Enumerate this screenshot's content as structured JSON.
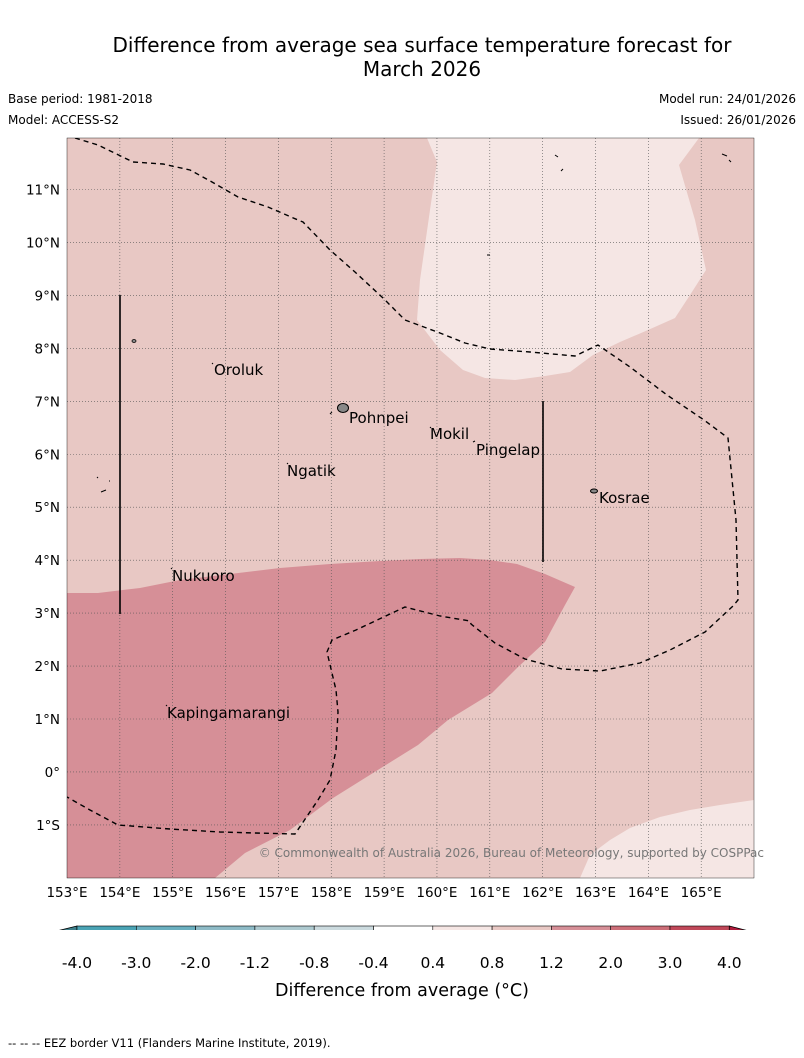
{
  "header": {
    "title_line1": "Difference from average sea surface temperature forecast for",
    "title_line2": "March 2026",
    "base_period": "Base period: 1981-2018",
    "model": "Model: ACCESS-S2",
    "model_run": "Model run: 24/01/2026",
    "issued": "Issued: 26/01/2026"
  },
  "map": {
    "lon_labels": [
      "153°E",
      "154°E",
      "155°E",
      "156°E",
      "157°E",
      "158°E",
      "159°E",
      "160°E",
      "161°E",
      "162°E",
      "163°E",
      "164°E",
      "165°E"
    ],
    "lat_labels": [
      "11°N",
      "10°N",
      "9°N",
      "8°N",
      "7°N",
      "6°N",
      "5°N",
      "4°N",
      "3°N",
      "2°N",
      "1°N",
      "0°",
      "1°S"
    ],
    "places": [
      "Oroluk",
      "Pohnpei",
      "Mokil",
      "Pingelap",
      "Ngatik",
      "Kosrae",
      "Nukuoro",
      "Kapingamarangi"
    ],
    "copyright": "© Commonwealth of Australia 2026, Bureau of Meteorology, supported by COSPPac",
    "colors": {
      "band_0_4_0_8": "#f5e6e4",
      "band_0_8_1_2": "#e8c8c4",
      "band_1_2_2_0": "#d68f97",
      "eez_line": "#000000"
    }
  },
  "colorbar": {
    "ticks": [
      "-4.0",
      "-3.0",
      "-2.0",
      "-1.2",
      "-0.8",
      "-0.4",
      "0.4",
      "0.8",
      "1.2",
      "2.0",
      "3.0",
      "4.0"
    ],
    "colors": [
      "#3e7f8a",
      "#4aa3b4",
      "#6aafbf",
      "#8dbac6",
      "#adc9cf",
      "#cbdade",
      "#ffffff",
      "#f5e6e4",
      "#e8c8c4",
      "#d68f97",
      "#cc6e78",
      "#c04859",
      "#b01c3d"
    ],
    "title": "Difference from average (°C)"
  },
  "footnote": "-- -- -- EEZ border V11 (Flanders Marine Institute, 2019)."
}
